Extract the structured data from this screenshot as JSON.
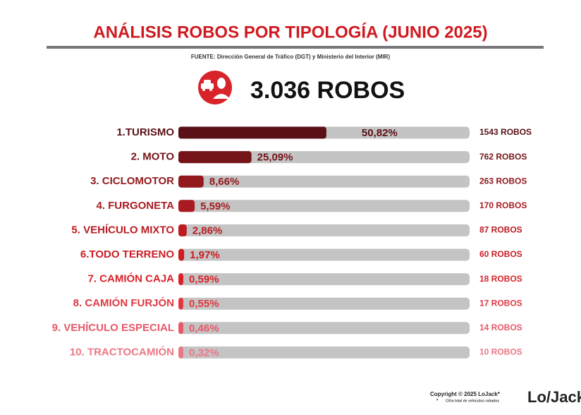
{
  "chart_data": {
    "type": "hbar",
    "title": "ANÁLISIS ROBOS POR TIPOLOGÍA (JUNIO 2025)",
    "source": "FUENTE: Dirección General de Tráfico (DGT) y Ministerio del Interior (MIR)",
    "total_label": "3.036 ROBOS",
    "categories": [
      "1.TURISMO",
      "2. MOTO",
      "3. CICLOMOTOR",
      "4. FURGONETA",
      "5. VEHÍCULO MIXTO",
      "6.TODO TERRENO",
      "7. CAMIÓN CAJA",
      "8. CAMIÓN FURJÓN",
      "9. VEHÍCULO ESPECIAL",
      "10. TRACTOCAMIÓN"
    ],
    "values": [
      50.82,
      25.09,
      8.66,
      5.59,
      2.86,
      1.97,
      0.59,
      0.55,
      0.46,
      0.32
    ],
    "value_labels": [
      "50,82%",
      "25,09%",
      "8,66%",
      "5,59%",
      "2,86%",
      "1,97%",
      "0,59%",
      "0,55%",
      "0,46%",
      "0,32%"
    ],
    "count_labels": [
      "1543 ROBOS",
      "762 ROBOS",
      "263 ROBOS",
      "170 ROBOS",
      "87 ROBOS",
      "60 ROBOS",
      "18 ROBOS",
      "17 ROBOS",
      "14 ROBOS",
      "10 ROBOS"
    ],
    "colors": [
      "#5a1016",
      "#751418",
      "#93191d",
      "#a81c21",
      "#bb1b21",
      "#cc1d25",
      "#d8232a",
      "#df3a43",
      "#e6596a",
      "#eb7886"
    ],
    "xlim": [
      0,
      100
    ],
    "copyright": "Copyright © 2025 LoJack*",
    "footnote": "Cifra total de vehículos robados",
    "footnote_mark": "*",
    "logo": "Lo/Jack"
  }
}
